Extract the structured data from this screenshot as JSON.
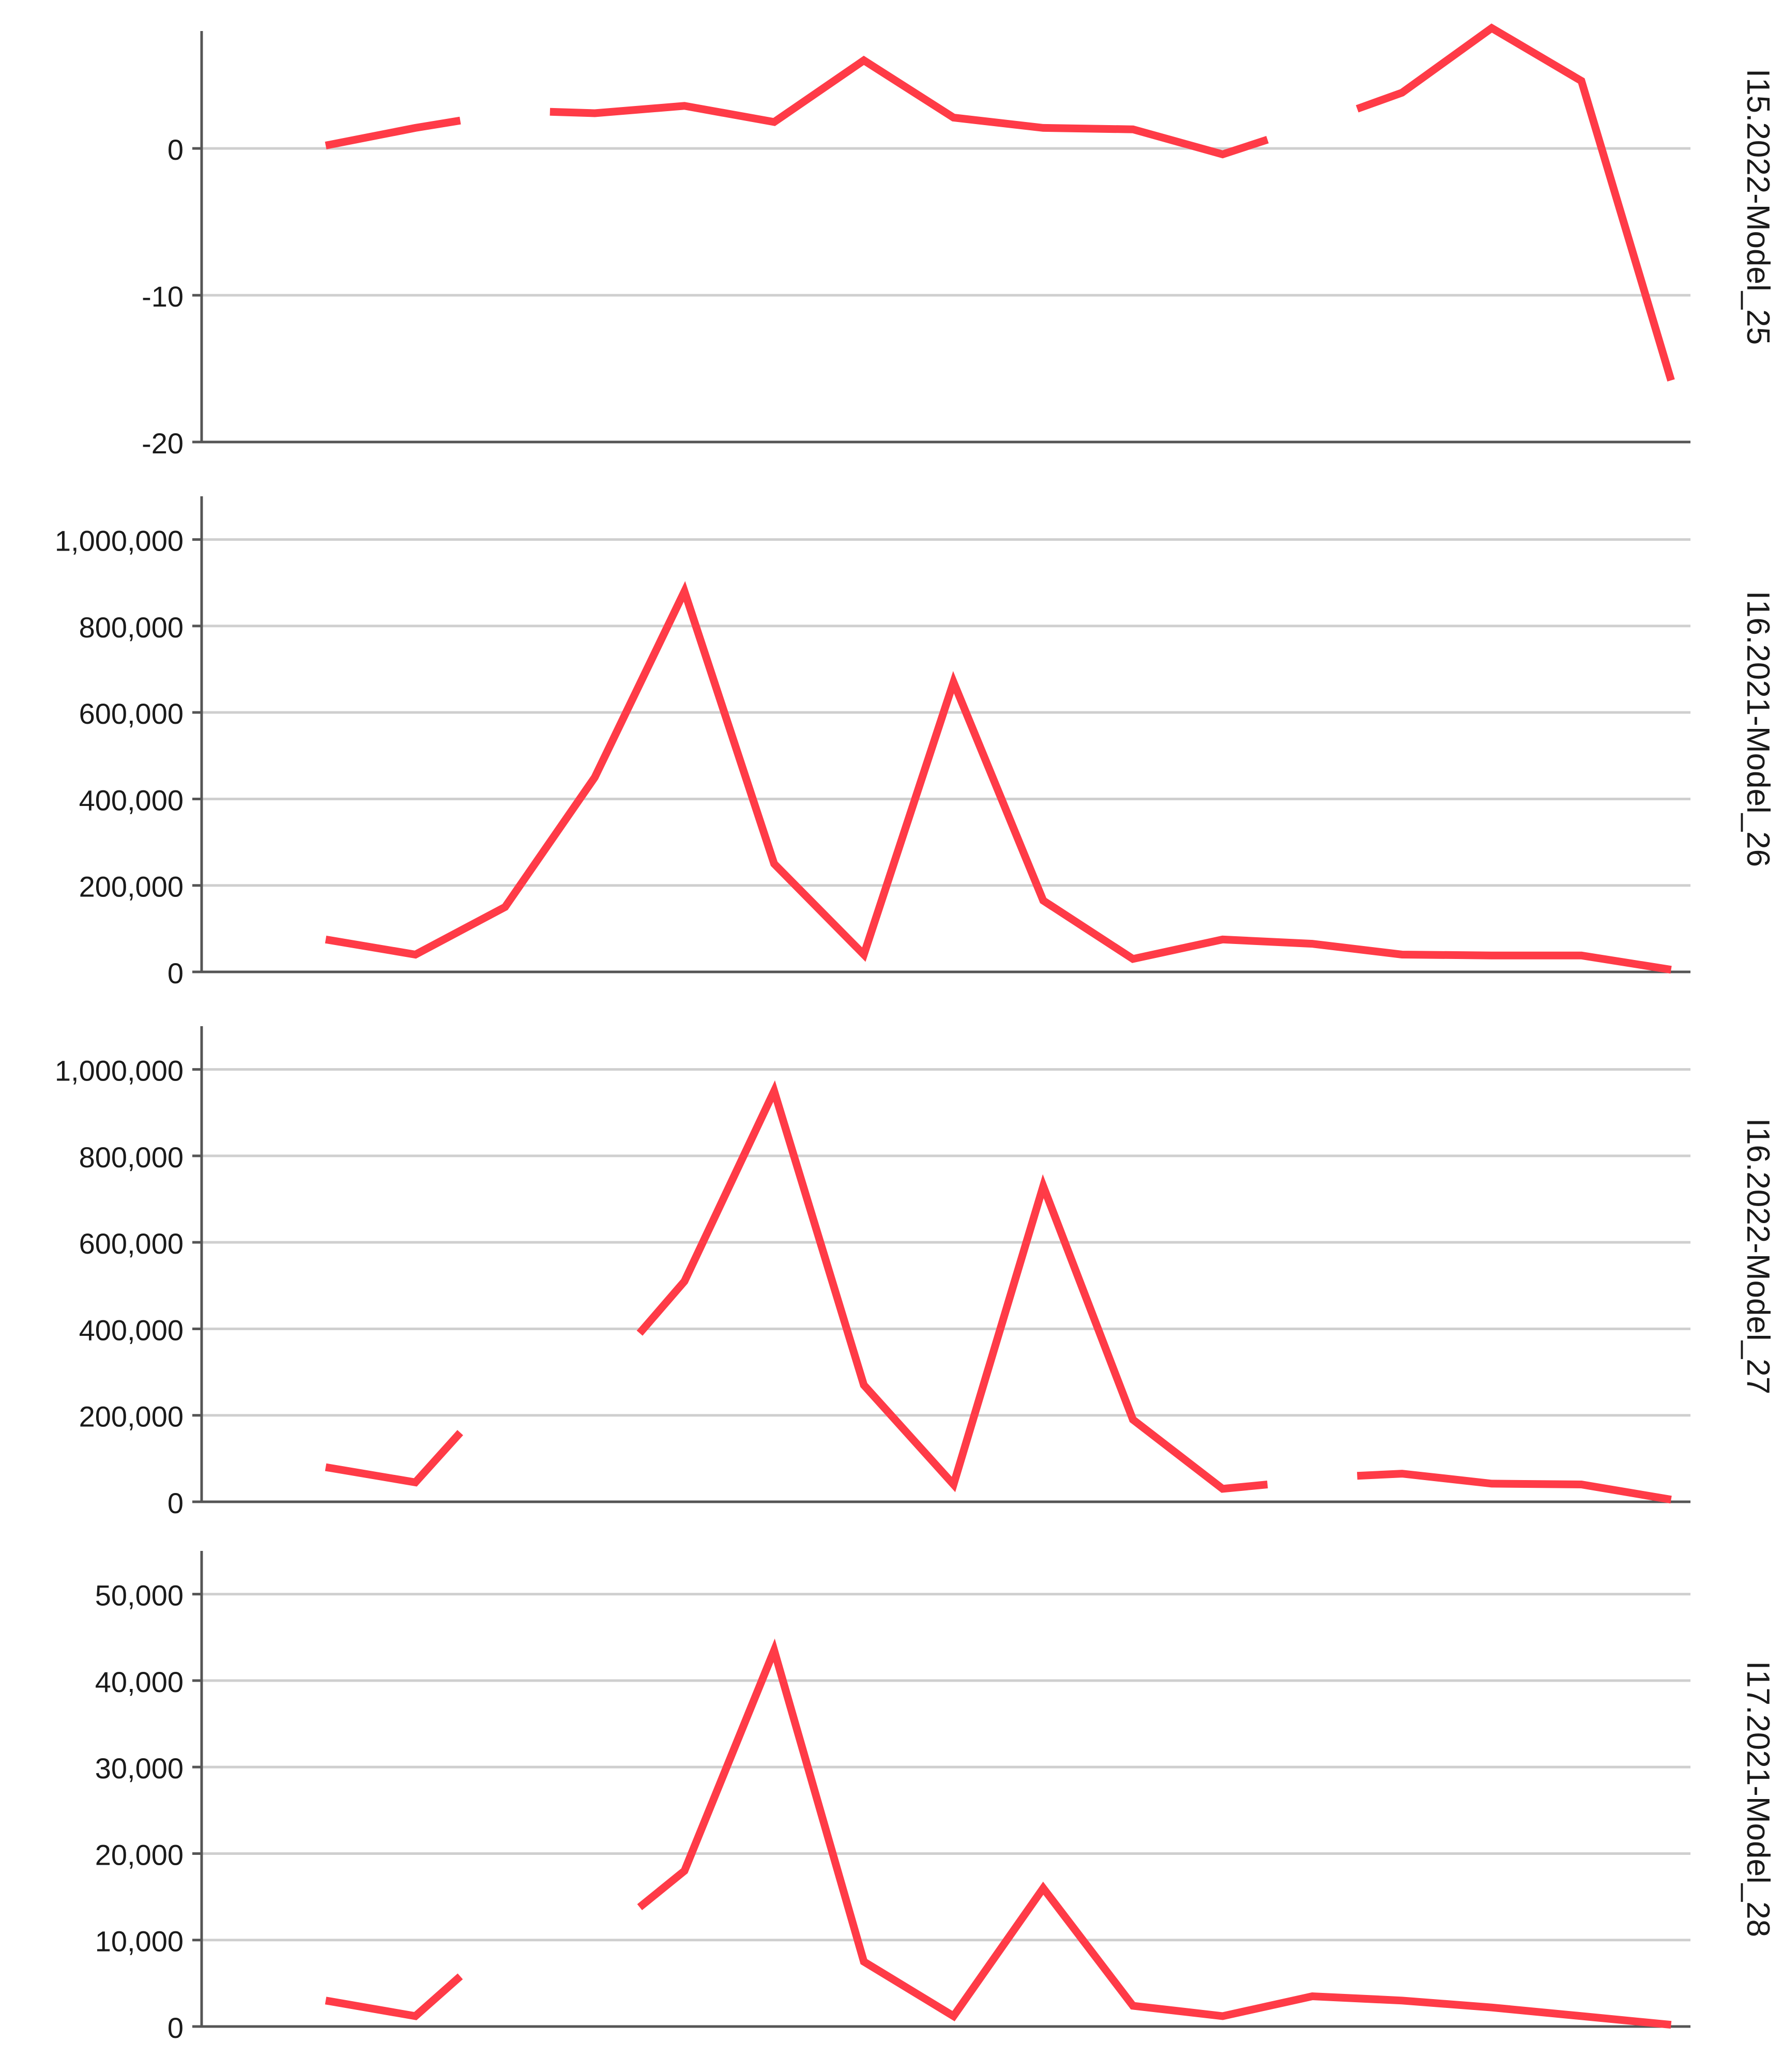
{
  "colors": {
    "series": "#ff3b47",
    "grid": "#cfcfcf",
    "axis": "#555555",
    "text": "#1a1a1a"
  },
  "chart_data": [
    {
      "type": "line",
      "panel_label": "I15.2022-Model_25",
      "ylim": [
        -20,
        8
      ],
      "y_ticks": [
        0,
        -10,
        -20
      ],
      "y_tick_labels": [
        "0",
        "-10",
        "-20"
      ],
      "grid": true,
      "x": [
        1,
        2,
        3,
        4,
        5,
        6,
        7,
        8,
        9,
        10,
        11,
        12,
        13,
        14,
        15,
        16
      ],
      "values": [
        0.2,
        1.4,
        null,
        2.4,
        2.9,
        1.8,
        6.0,
        2.1,
        1.4,
        1.3,
        -0.4,
        null,
        3.8,
        8.2,
        4.6,
        -15.8
      ],
      "segment_ends": [
        {
          "after": 2,
          "value": 1.9
        },
        {
          "before": 4,
          "value": 2.5
        },
        {
          "after": 11,
          "value": 0.6
        },
        {
          "before": 13,
          "value": 2.7
        }
      ]
    },
    {
      "type": "line",
      "panel_label": "I16.2021-Model_26",
      "ylim": [
        0,
        1100000
      ],
      "y_ticks": [
        0,
        200000,
        400000,
        600000,
        800000,
        1000000
      ],
      "y_tick_labels": [
        "0",
        "200,000",
        "400,000",
        "600,000",
        "800,000",
        "1,000,000"
      ],
      "grid": true,
      "x": [
        1,
        2,
        3,
        4,
        5,
        6,
        7,
        8,
        9,
        10,
        11,
        12,
        13,
        14,
        15,
        16
      ],
      "values": [
        75000,
        40000,
        150000,
        450000,
        880000,
        250000,
        40000,
        670000,
        165000,
        30000,
        75000,
        65000,
        40000,
        38000,
        38000,
        5000
      ],
      "segment_ends": []
    },
    {
      "type": "line",
      "panel_label": "I16.2022-Model_27",
      "ylim": [
        0,
        1100000
      ],
      "y_ticks": [
        0,
        200000,
        400000,
        600000,
        800000,
        1000000
      ],
      "y_tick_labels": [
        "0",
        "200,000",
        "400,000",
        "600,000",
        "800,000",
        "1,000,000"
      ],
      "grid": true,
      "x": [
        1,
        2,
        3,
        4,
        5,
        6,
        7,
        8,
        9,
        10,
        11,
        12,
        13,
        14,
        15,
        16
      ],
      "values": [
        80000,
        45000,
        null,
        null,
        510000,
        950000,
        270000,
        40000,
        730000,
        190000,
        30000,
        null,
        65000,
        42000,
        40000,
        5000
      ],
      "segment_ends": [
        {
          "after": 2,
          "value": 160000
        },
        {
          "before": 5,
          "value": 390000
        },
        {
          "after": 11,
          "value": 40000
        },
        {
          "before": 13,
          "value": 60000
        }
      ]
    },
    {
      "type": "line",
      "panel_label": "I17.2021-Model_28",
      "ylim": [
        0,
        55000
      ],
      "y_ticks": [
        0,
        10000,
        20000,
        30000,
        40000,
        50000
      ],
      "y_tick_labels": [
        "0",
        "10,000",
        "20,000",
        "30,000",
        "40,000",
        "50,000"
      ],
      "grid": true,
      "x": [
        1,
        2,
        3,
        4,
        5,
        6,
        7,
        8,
        9,
        10,
        11,
        12,
        13,
        14,
        15,
        16
      ],
      "values": [
        3000,
        1200,
        null,
        null,
        18000,
        43500,
        7500,
        1200,
        16000,
        2400,
        1200,
        3500,
        3000,
        2200,
        1200,
        200
      ],
      "segment_ends": [
        {
          "after": 2,
          "value": 5800
        },
        {
          "before": 5,
          "value": 13800
        }
      ]
    }
  ]
}
